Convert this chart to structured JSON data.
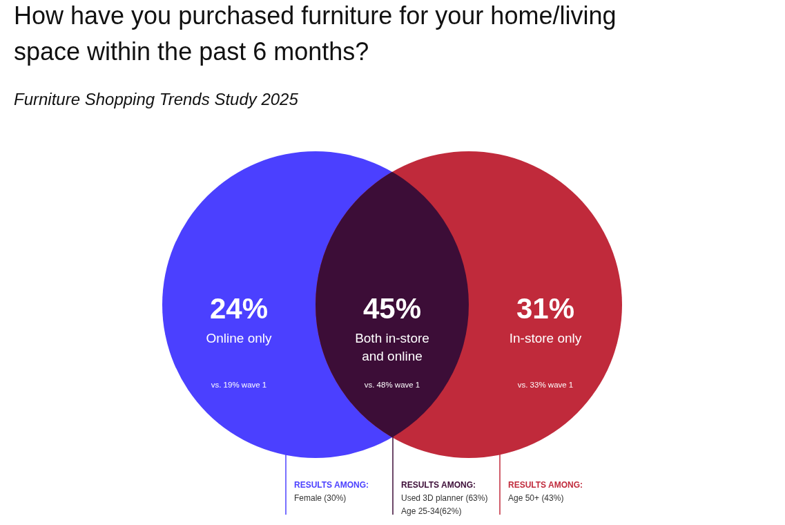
{
  "chart_data": {
    "type": "other",
    "title": "How have you purchased furniture for your home/living space within the past 6 months?",
    "subtitle": "Furniture Shopping Trends Study 2025",
    "categories": [
      "Online only",
      "Both in-store and online",
      "In-store only"
    ],
    "values": [
      24,
      45,
      31
    ],
    "value_labels": [
      "24%",
      "45%",
      "31%"
    ],
    "colors": [
      "#4b40ff",
      "#3c0d37",
      "#c02a3b"
    ],
    "annotations": [
      {
        "text": "vs. 19% wave 1",
        "x": "Online only"
      },
      {
        "text": "RESULTS AMONG:",
        "x": "Online only"
      },
      {
        "text": "Female (30%)",
        "x": "Online only"
      },
      {
        "text": "vs. 48% wave 1",
        "x": "Both in-store and online"
      },
      {
        "text": "RESULTS AMONG:",
        "x": "Both in-store and online"
      },
      {
        "text": "Used 3D planner (63%)",
        "x": "Both in-store and online"
      },
      {
        "text": "Age 25-34(62%)",
        "x": "Both in-store and online"
      },
      {
        "text": "vs. 33% wave 1",
        "x": "In-store only"
      },
      {
        "text": "RESULTS AMONG:",
        "x": "In-store only"
      },
      {
        "text": "Age 50+ (43%)",
        "x": "In-store only"
      }
    ]
  }
}
